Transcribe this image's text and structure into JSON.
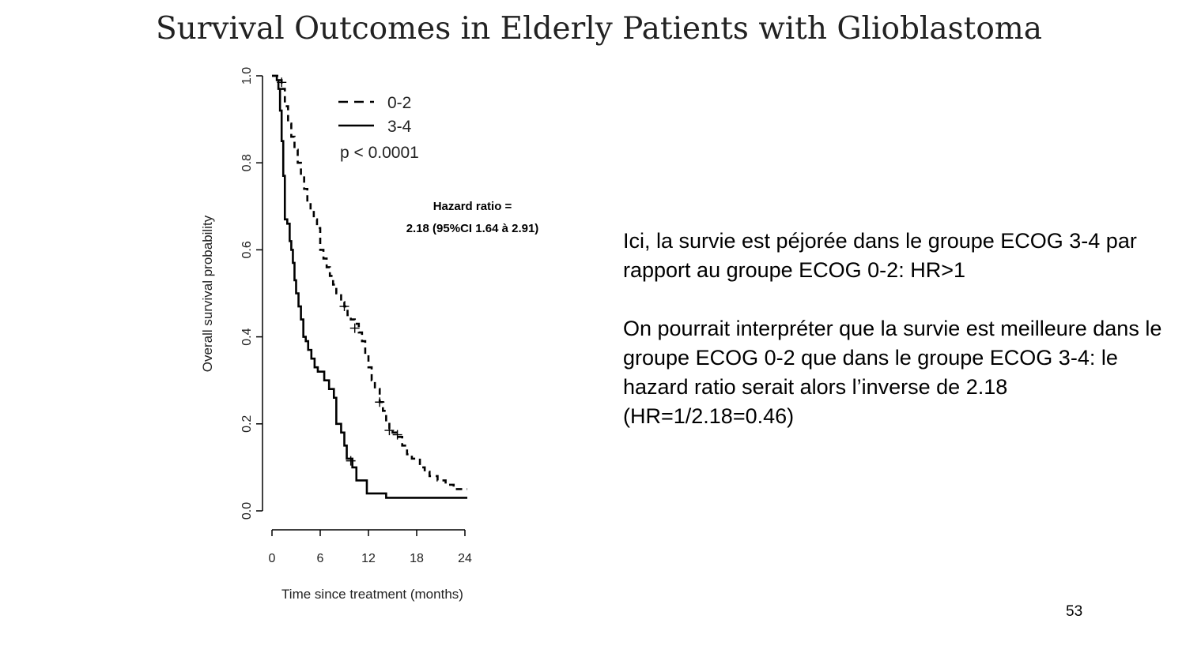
{
  "slide": {
    "title": "Survival Outcomes in Elderly Patients with Glioblastoma",
    "page_number": "53"
  },
  "hazard_box": {
    "line1": "Hazard ratio =",
    "line2": "2.18 (95%CI  1.64 à 2.91)"
  },
  "explanation": {
    "paragraph1": "Ici, la survie est péjorée dans le groupe ECOG 3-4 par rapport au groupe ECOG 0-2: HR>1",
    "paragraph2": "On pourrait interpréter que la survie est meilleure dans le groupe ECOG 0-2 que dans le groupe ECOG 3-4: le hazard ratio serait alors l’inverse de 2.18 (HR=1/2.18=0.46)"
  },
  "chart_data": {
    "type": "line",
    "subtype": "kaplan-meier step curve",
    "xlabel": "Time since treatment (months)",
    "ylabel": "Overall survival probability",
    "xlim": [
      0,
      24
    ],
    "ylim": [
      0,
      1
    ],
    "xticks": [
      "0",
      "6",
      "12",
      "18",
      "24"
    ],
    "yticks": [
      "0.0",
      "0.2",
      "0.4",
      "0.6",
      "0.8",
      "1.0"
    ],
    "legend_position": "top-right",
    "annotation": "p < 0.0001",
    "series": [
      {
        "name": "0-2",
        "style": "dashed",
        "points": [
          [
            0,
            1.0
          ],
          [
            0.8,
            0.99
          ],
          [
            1.2,
            0.97
          ],
          [
            1.6,
            0.93
          ],
          [
            2.0,
            0.89
          ],
          [
            2.4,
            0.86
          ],
          [
            2.8,
            0.83
          ],
          [
            3.2,
            0.8
          ],
          [
            3.6,
            0.77
          ],
          [
            4.0,
            0.74
          ],
          [
            4.4,
            0.71
          ],
          [
            4.8,
            0.69
          ],
          [
            5.2,
            0.67
          ],
          [
            5.6,
            0.65
          ],
          [
            6.0,
            0.6
          ],
          [
            6.4,
            0.58
          ],
          [
            6.8,
            0.56
          ],
          [
            7.2,
            0.54
          ],
          [
            7.6,
            0.52
          ],
          [
            8.0,
            0.5
          ],
          [
            8.6,
            0.48
          ],
          [
            9.0,
            0.47
          ],
          [
            9.4,
            0.45
          ],
          [
            9.8,
            0.44
          ],
          [
            10.3,
            0.43
          ],
          [
            10.8,
            0.41
          ],
          [
            11.2,
            0.39
          ],
          [
            11.6,
            0.36
          ],
          [
            12.0,
            0.33
          ],
          [
            12.4,
            0.3
          ],
          [
            12.8,
            0.28
          ],
          [
            13.4,
            0.25
          ],
          [
            13.8,
            0.23
          ],
          [
            14.2,
            0.2
          ],
          [
            14.6,
            0.19
          ],
          [
            15.0,
            0.18
          ],
          [
            15.6,
            0.17
          ],
          [
            16.2,
            0.15
          ],
          [
            16.8,
            0.13
          ],
          [
            17.4,
            0.12
          ],
          [
            18.4,
            0.1
          ],
          [
            19.0,
            0.09
          ],
          [
            19.6,
            0.08
          ],
          [
            20.6,
            0.07
          ],
          [
            21.6,
            0.06
          ],
          [
            22.6,
            0.05
          ],
          [
            24.3,
            0.05
          ]
        ],
        "censor_marks": [
          [
            1.2,
            0.985
          ],
          [
            9.0,
            0.47
          ],
          [
            10.3,
            0.42
          ],
          [
            13.4,
            0.25
          ],
          [
            14.6,
            0.185
          ],
          [
            15.6,
            0.175
          ]
        ]
      },
      {
        "name": "3-4",
        "style": "solid",
        "points": [
          [
            0,
            1.0
          ],
          [
            0.6,
            0.99
          ],
          [
            0.8,
            0.97
          ],
          [
            1.0,
            0.92
          ],
          [
            1.2,
            0.85
          ],
          [
            1.4,
            0.77
          ],
          [
            1.6,
            0.67
          ],
          [
            1.9,
            0.66
          ],
          [
            2.2,
            0.62
          ],
          [
            2.4,
            0.6
          ],
          [
            2.6,
            0.57
          ],
          [
            2.8,
            0.53
          ],
          [
            3.0,
            0.5
          ],
          [
            3.3,
            0.47
          ],
          [
            3.6,
            0.44
          ],
          [
            3.9,
            0.4
          ],
          [
            4.2,
            0.39
          ],
          [
            4.5,
            0.37
          ],
          [
            4.9,
            0.35
          ],
          [
            5.3,
            0.33
          ],
          [
            5.7,
            0.32
          ],
          [
            6.5,
            0.3
          ],
          [
            7.1,
            0.28
          ],
          [
            7.7,
            0.26
          ],
          [
            8.0,
            0.2
          ],
          [
            8.6,
            0.18
          ],
          [
            9.0,
            0.15
          ],
          [
            9.3,
            0.12
          ],
          [
            10.0,
            0.1
          ],
          [
            10.5,
            0.07
          ],
          [
            11.8,
            0.04
          ],
          [
            14.2,
            0.03
          ],
          [
            24.3,
            0.03
          ]
        ],
        "censor_marks": [
          [
            9.8,
            0.115
          ]
        ]
      }
    ]
  }
}
